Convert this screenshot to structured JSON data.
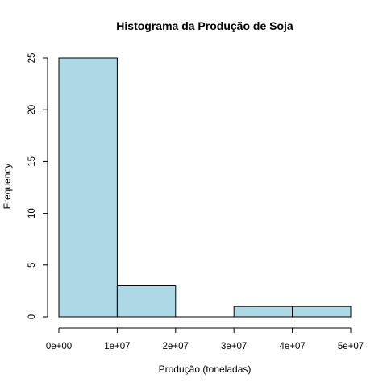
{
  "chart_data": {
    "type": "bar",
    "title": "Histograma da Produção de Soja",
    "xlabel": "Produção (toneladas)",
    "ylabel": "Frequency",
    "bins": [
      {
        "from": 0,
        "to": 10000000,
        "count": 25
      },
      {
        "from": 10000000,
        "to": 20000000,
        "count": 3
      },
      {
        "from": 20000000,
        "to": 30000000,
        "count": 0
      },
      {
        "from": 30000000,
        "to": 40000000,
        "count": 1
      },
      {
        "from": 40000000,
        "to": 50000000,
        "count": 1
      }
    ],
    "xlim": [
      0,
      50000000
    ],
    "ylim": [
      0,
      25
    ],
    "x_ticks": [
      0,
      10000000,
      20000000,
      30000000,
      40000000,
      50000000
    ],
    "x_tick_labels": [
      "0e+00",
      "1e+07",
      "2e+07",
      "3e+07",
      "4e+07",
      "5e+07"
    ],
    "y_ticks": [
      0,
      5,
      10,
      15,
      20,
      25
    ],
    "y_tick_labels": [
      "0",
      "5",
      "10",
      "15",
      "20",
      "25"
    ],
    "bar_color": "#add8e6",
    "grid": false
  }
}
